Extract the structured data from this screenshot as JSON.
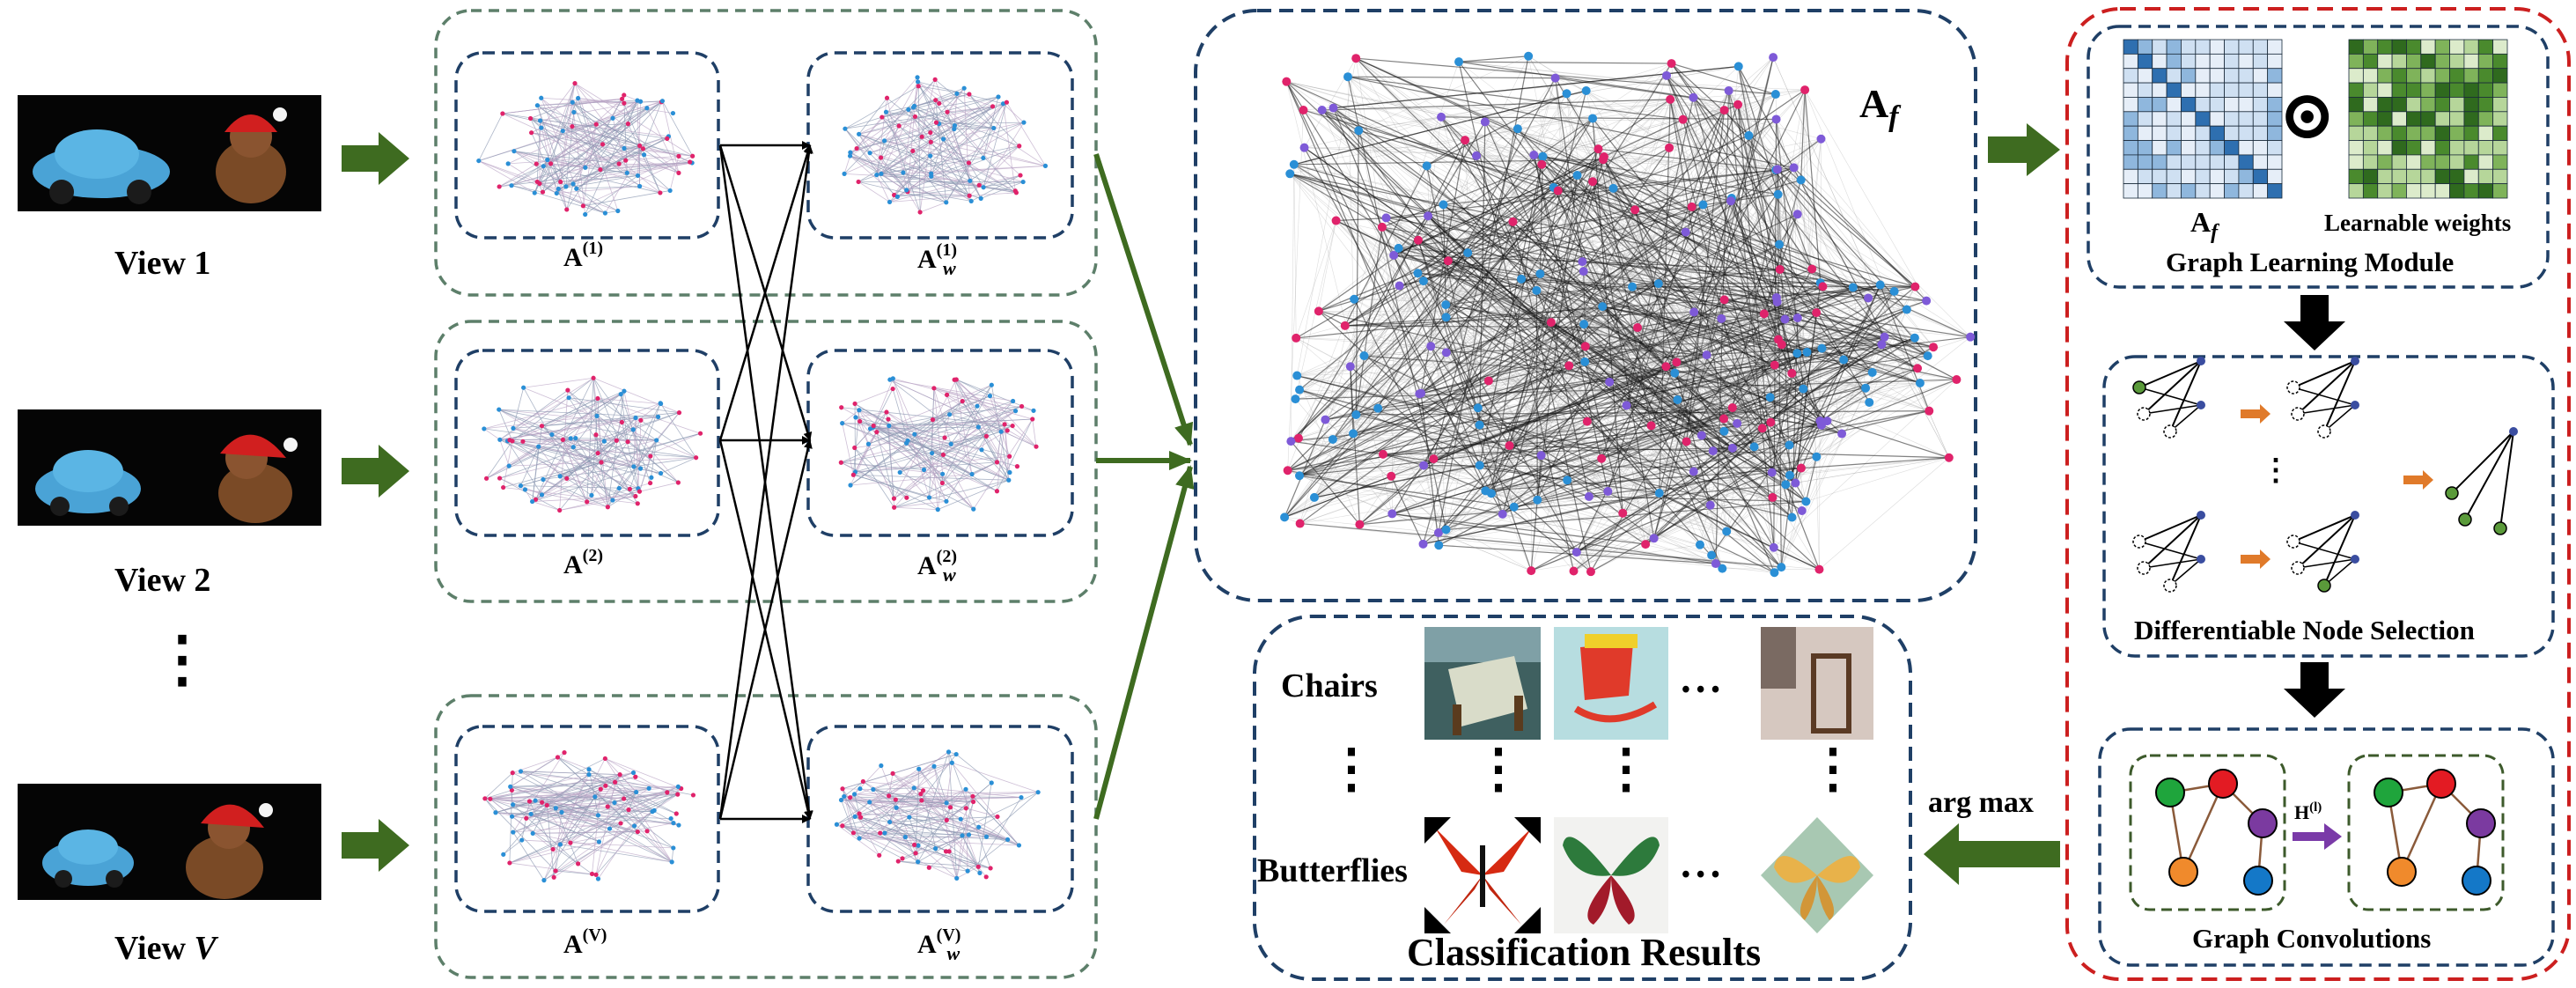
{
  "views": [
    {
      "label": "View 1"
    },
    {
      "label": "View 2"
    },
    {
      "label": "View ",
      "italic": "V"
    }
  ],
  "view_ellipsis": "⋮",
  "graphs": {
    "a1": {
      "base": "A",
      "sup": "(1)"
    },
    "aw1": {
      "base": "A",
      "sup": "(1)",
      "sub": "w"
    },
    "a2": {
      "base": "A",
      "sup": "(2)"
    },
    "aw2": {
      "base": "A",
      "sup": "(2)",
      "sub": "w"
    },
    "av": {
      "base": "A",
      "sup": "(V)"
    },
    "awv": {
      "base": "A",
      "sup": "(V)",
      "sub": "w"
    }
  },
  "fused": {
    "base": "A",
    "sub": "f"
  },
  "graph_learning": {
    "matrix_label_base": "A",
    "matrix_label_sub": "f",
    "operator": "⊙",
    "weights_label": "Learnable weights",
    "title": "Graph Learning Module"
  },
  "node_selection": {
    "title": "Differentiable Node Selection",
    "ellipsis": "⋮"
  },
  "graph_conv": {
    "title": "Graph Convolutions",
    "op_base": "H",
    "op_sup": "(l)"
  },
  "classification": {
    "title": "Classification Results",
    "rows": [
      "Chairs",
      "Butterflies"
    ],
    "ellipsis_h": "• • •",
    "ellipsis_v": "⋮"
  },
  "argmax_label": "arg max",
  "colors": {
    "green_arrow": "#3e6b20",
    "blue_dash": "#1f3f66",
    "green_dash": "#5d7f6a",
    "red_dash": "#cc1f1f",
    "node_pink": "#e0236b",
    "node_blue": "#2a8fd6",
    "node_purple": "#7e5ad8"
  }
}
